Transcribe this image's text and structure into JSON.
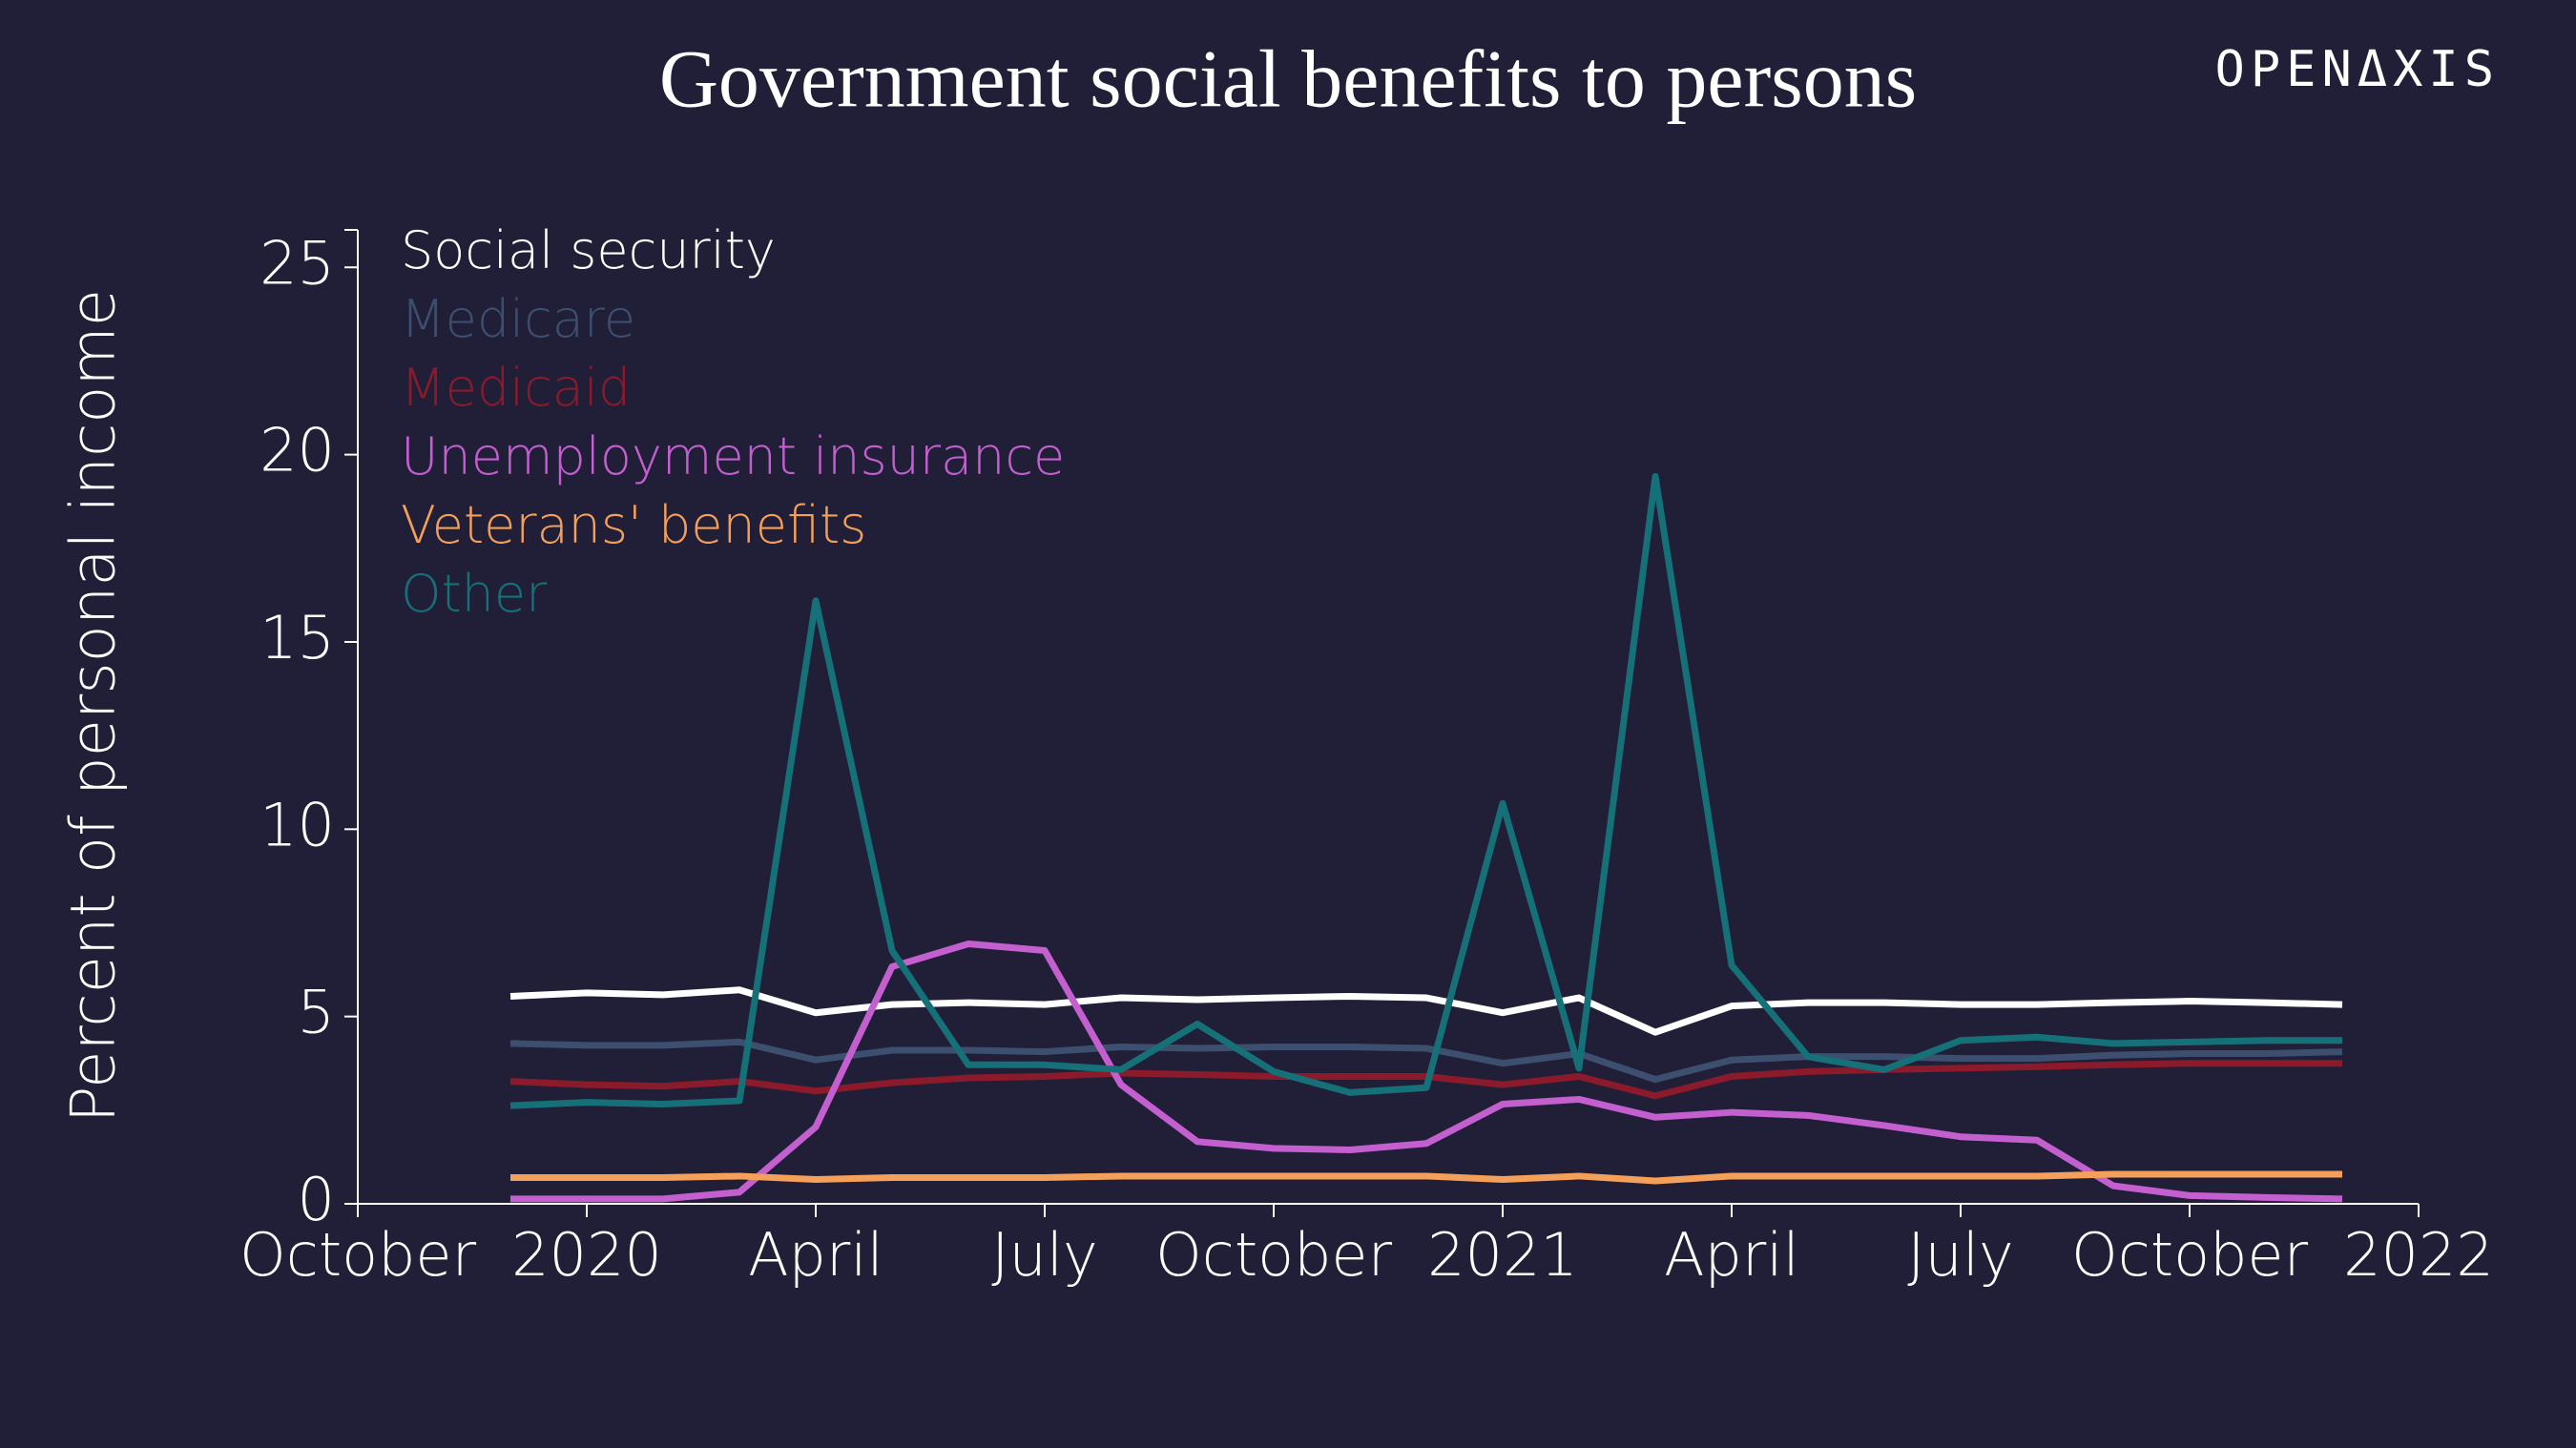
{
  "chart_data": {
    "type": "line",
    "title": "Government social benefits to persons",
    "logo": "OPENΔXIS",
    "y_label": "Percent of personal income",
    "x": [
      "2019-12",
      "2020-01",
      "2020-02",
      "2020-03",
      "2020-04",
      "2020-05",
      "2020-06",
      "2020-07",
      "2020-08",
      "2020-09",
      "2020-10",
      "2020-11",
      "2020-12",
      "2021-01",
      "2021-02",
      "2021-03",
      "2021-04",
      "2021-05",
      "2021-06",
      "2021-07",
      "2021-08",
      "2021-09",
      "2021-10",
      "2021-11",
      "2021-12"
    ],
    "series": [
      {
        "name": "Social security",
        "color": "#ffffff",
        "values": [
          5.54,
          5.63,
          5.58,
          5.71,
          5.1,
          5.32,
          5.37,
          5.32,
          5.5,
          5.45,
          5.5,
          5.54,
          5.5,
          5.1,
          5.5,
          4.58,
          5.28,
          5.37,
          5.37,
          5.32,
          5.32,
          5.37,
          5.41,
          5.37,
          5.32
        ]
      },
      {
        "name": "Medicare",
        "color": "#3d4f6e",
        "values": [
          4.28,
          4.23,
          4.23,
          4.32,
          3.84,
          4.1,
          4.1,
          4.06,
          4.19,
          4.15,
          4.19,
          4.19,
          4.15,
          3.75,
          4.01,
          3.32,
          3.84,
          3.93,
          3.93,
          3.88,
          3.88,
          3.97,
          4.01,
          4.01,
          4.06
        ]
      },
      {
        "name": "Medicaid",
        "color": "#8b1a2b",
        "values": [
          3.27,
          3.18,
          3.14,
          3.27,
          3.01,
          3.23,
          3.36,
          3.4,
          3.49,
          3.45,
          3.4,
          3.4,
          3.4,
          3.18,
          3.4,
          2.88,
          3.4,
          3.53,
          3.58,
          3.62,
          3.66,
          3.71,
          3.75,
          3.75,
          3.75
        ]
      },
      {
        "name": "Unemployment insurance",
        "color": "#c45fcf",
        "values": [
          0.13,
          0.13,
          0.13,
          0.31,
          2.05,
          6.33,
          6.94,
          6.76,
          3.18,
          1.66,
          1.48,
          1.44,
          1.61,
          2.66,
          2.79,
          2.31,
          2.44,
          2.36,
          2.09,
          1.79,
          1.7,
          0.48,
          0.22,
          0.17,
          0.13
        ]
      },
      {
        "name": "Veterans' benefits",
        "color": "#f5a05a",
        "values": [
          0.7,
          0.7,
          0.7,
          0.74,
          0.65,
          0.7,
          0.7,
          0.7,
          0.74,
          0.74,
          0.74,
          0.74,
          0.74,
          0.65,
          0.74,
          0.61,
          0.74,
          0.74,
          0.74,
          0.74,
          0.74,
          0.79,
          0.79,
          0.79,
          0.79
        ]
      },
      {
        "name": "Other",
        "color": "#157077",
        "values": [
          2.62,
          2.71,
          2.66,
          2.75,
          16.1,
          6.76,
          3.71,
          3.71,
          3.58,
          4.8,
          3.53,
          2.97,
          3.1,
          10.69,
          3.62,
          19.42,
          6.37,
          3.93,
          3.58,
          4.36,
          4.45,
          4.28,
          4.32,
          4.36,
          4.36
        ]
      }
    ],
    "xlim": [
      "2019-10",
      "2022-01"
    ],
    "xticks": [
      {
        "value": "2019-10",
        "label": "October"
      },
      {
        "value": "2020-01",
        "label": "2020"
      },
      {
        "value": "2020-04",
        "label": "April"
      },
      {
        "value": "2020-07",
        "label": "July"
      },
      {
        "value": "2020-10",
        "label": "October"
      },
      {
        "value": "2021-01",
        "label": "2021"
      },
      {
        "value": "2021-04",
        "label": "April"
      },
      {
        "value": "2021-07",
        "label": "July"
      },
      {
        "value": "2021-10",
        "label": "October"
      },
      {
        "value": "2022-01",
        "label": "2022"
      }
    ],
    "ylim": [
      0,
      26
    ],
    "yticks": [
      0,
      5,
      10,
      15,
      20,
      25
    ],
    "legend": "top-left",
    "grid": false
  }
}
